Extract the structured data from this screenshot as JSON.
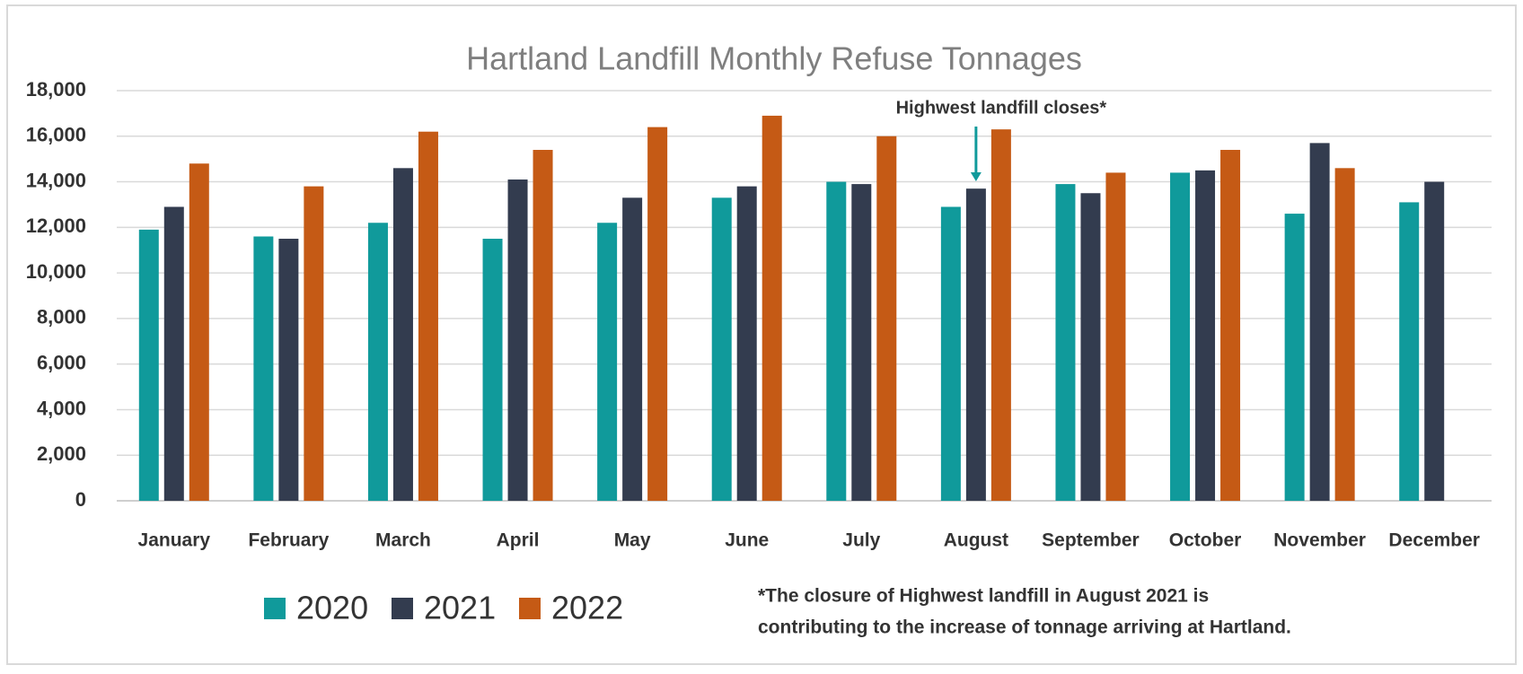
{
  "chart_data": {
    "type": "bar",
    "title": "Hartland Landfill Monthly Refuse Tonnages",
    "categories": [
      "January",
      "February",
      "March",
      "April",
      "May",
      "June",
      "July",
      "August",
      "September",
      "October",
      "November",
      "December"
    ],
    "series": [
      {
        "name": "2020",
        "color": "#109a9b",
        "values": [
          11900,
          11600,
          12200,
          11500,
          12200,
          13300,
          14000,
          12900,
          13900,
          14400,
          12600,
          13100
        ]
      },
      {
        "name": "2021",
        "color": "#333c4f",
        "values": [
          12900,
          11500,
          14600,
          14100,
          13300,
          13800,
          13900,
          13700,
          13500,
          14500,
          15700,
          14000
        ]
      },
      {
        "name": "2022",
        "color": "#c55a15",
        "values": [
          14800,
          13800,
          16200,
          15400,
          16400,
          16900,
          16000,
          16300,
          14400,
          15400,
          14600,
          null
        ]
      }
    ],
    "ylim": [
      0,
      18000
    ],
    "yticks": [
      0,
      {
        "value": 2000,
        "label": "2,000"
      },
      {
        "value": 4000,
        "label": "4,000"
      },
      {
        "value": 6000,
        "label": "6,000"
      },
      {
        "value": 8000,
        "label": "8,000"
      },
      {
        "value": 10000,
        "label": "10,000"
      },
      {
        "value": 12000,
        "label": "12,000"
      },
      {
        "value": 14000,
        "label": "14,000"
      },
      {
        "value": 16000,
        "label": "16,000"
      },
      {
        "value": 18000,
        "label": "18,000"
      }
    ],
    "grid": true,
    "legend": "bottom-left",
    "annotation": "Highwest landfill closes*",
    "footnote": [
      "*The closure of Highwest landfill in August 2021 is",
      "contributing to the increase of tonnage arriving at Hartland."
    ]
  }
}
